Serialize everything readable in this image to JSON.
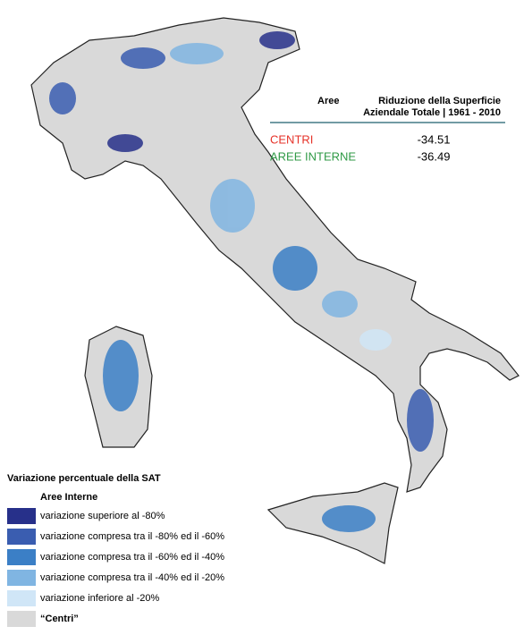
{
  "table": {
    "headers": [
      "Aree",
      [
        "Riduzione della Superficie",
        "Aziendale Totale  | 1961 - 2010"
      ]
    ],
    "rows": [
      {
        "label": "CENTRI",
        "color": "#e63228",
        "value": -34.51
      },
      {
        "label": "AREE INTERNE",
        "color": "#2f9a46",
        "value": -36.49
      }
    ]
  },
  "legend": {
    "title": "Variazione percentuale della SAT",
    "subtitle": "Aree Interne",
    "items": [
      {
        "label": "variazione superiore al -80%",
        "color": "#27308a"
      },
      {
        "label": "variazione compresa tra il -80% ed il -60%",
        "color": "#3a5db0"
      },
      {
        "label": "variazione compresa tra il -60% ed il -40%",
        "color": "#3b7fc6"
      },
      {
        "label": "variazione compresa tra il -40% ed il -20%",
        "color": "#80b5e2"
      },
      {
        "label": "variazione inferiore al -20%",
        "color": "#d0e6f7"
      },
      {
        "label": "“Centri”",
        "color": "#d9d9d9"
      }
    ]
  }
}
